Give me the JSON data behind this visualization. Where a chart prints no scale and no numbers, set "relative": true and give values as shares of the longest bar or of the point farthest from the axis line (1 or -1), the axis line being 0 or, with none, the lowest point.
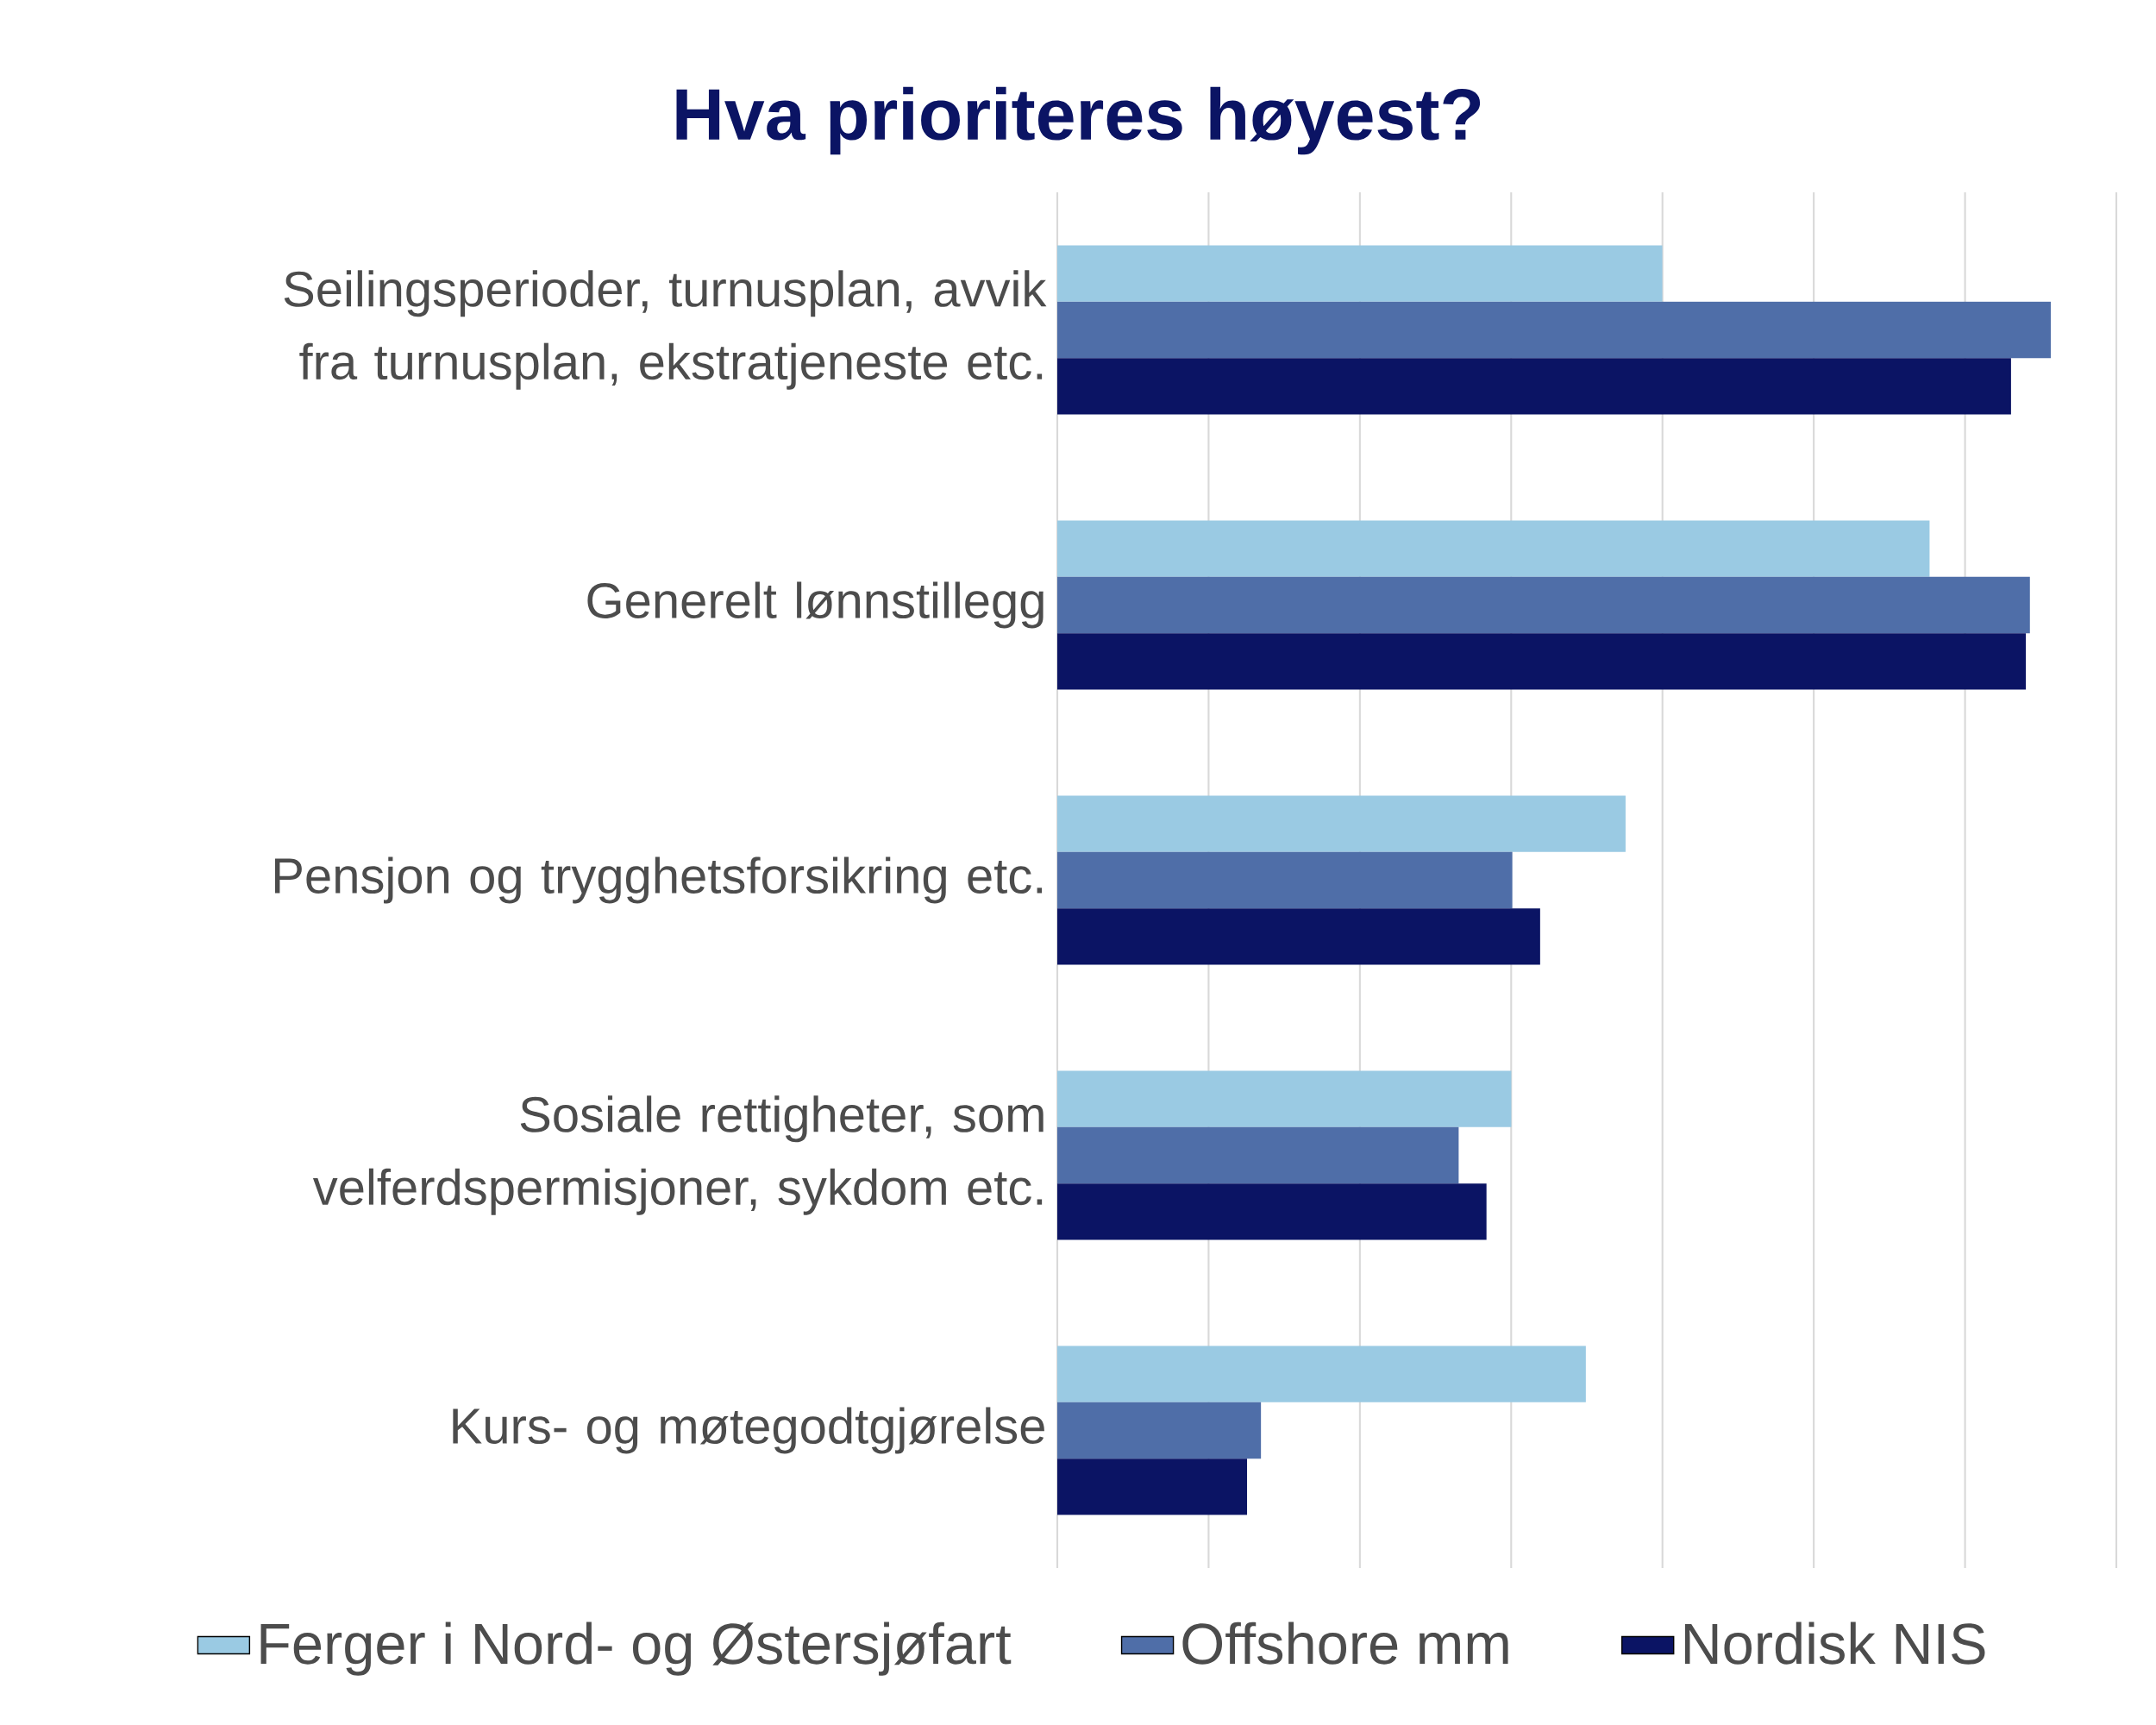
{
  "chart_data": {
    "type": "bar",
    "orientation": "horizontal",
    "relative": true,
    "title": "Hva prioriteres høyest?",
    "categories": [
      "Seilingsperioder, turnusplan, avvik fra turnusplan, ekstratjeneste etc.",
      "Generelt lønnstillegg",
      "Pensjon og trygghetsforsikring etc.",
      "Sosiale rettigheter, som velferdspermisjoner, sykdom etc.",
      "Kurs- og møtegodtgjørelse"
    ],
    "series": [
      {
        "name": "Ferger i Nord- og Østersjøfart",
        "color": "#9ACAE3",
        "values": [
          0.609,
          0.878,
          0.572,
          0.457,
          0.532
        ]
      },
      {
        "name": "Offshore mm",
        "color": "#4F6EA8",
        "values": [
          1.0,
          0.979,
          0.458,
          0.404,
          0.205
        ]
      },
      {
        "name": "Nordisk NIS",
        "color": "#0B1464",
        "values": [
          0.96,
          0.975,
          0.486,
          0.432,
          0.191
        ]
      }
    ],
    "grid": "x",
    "legend": "bottom"
  }
}
